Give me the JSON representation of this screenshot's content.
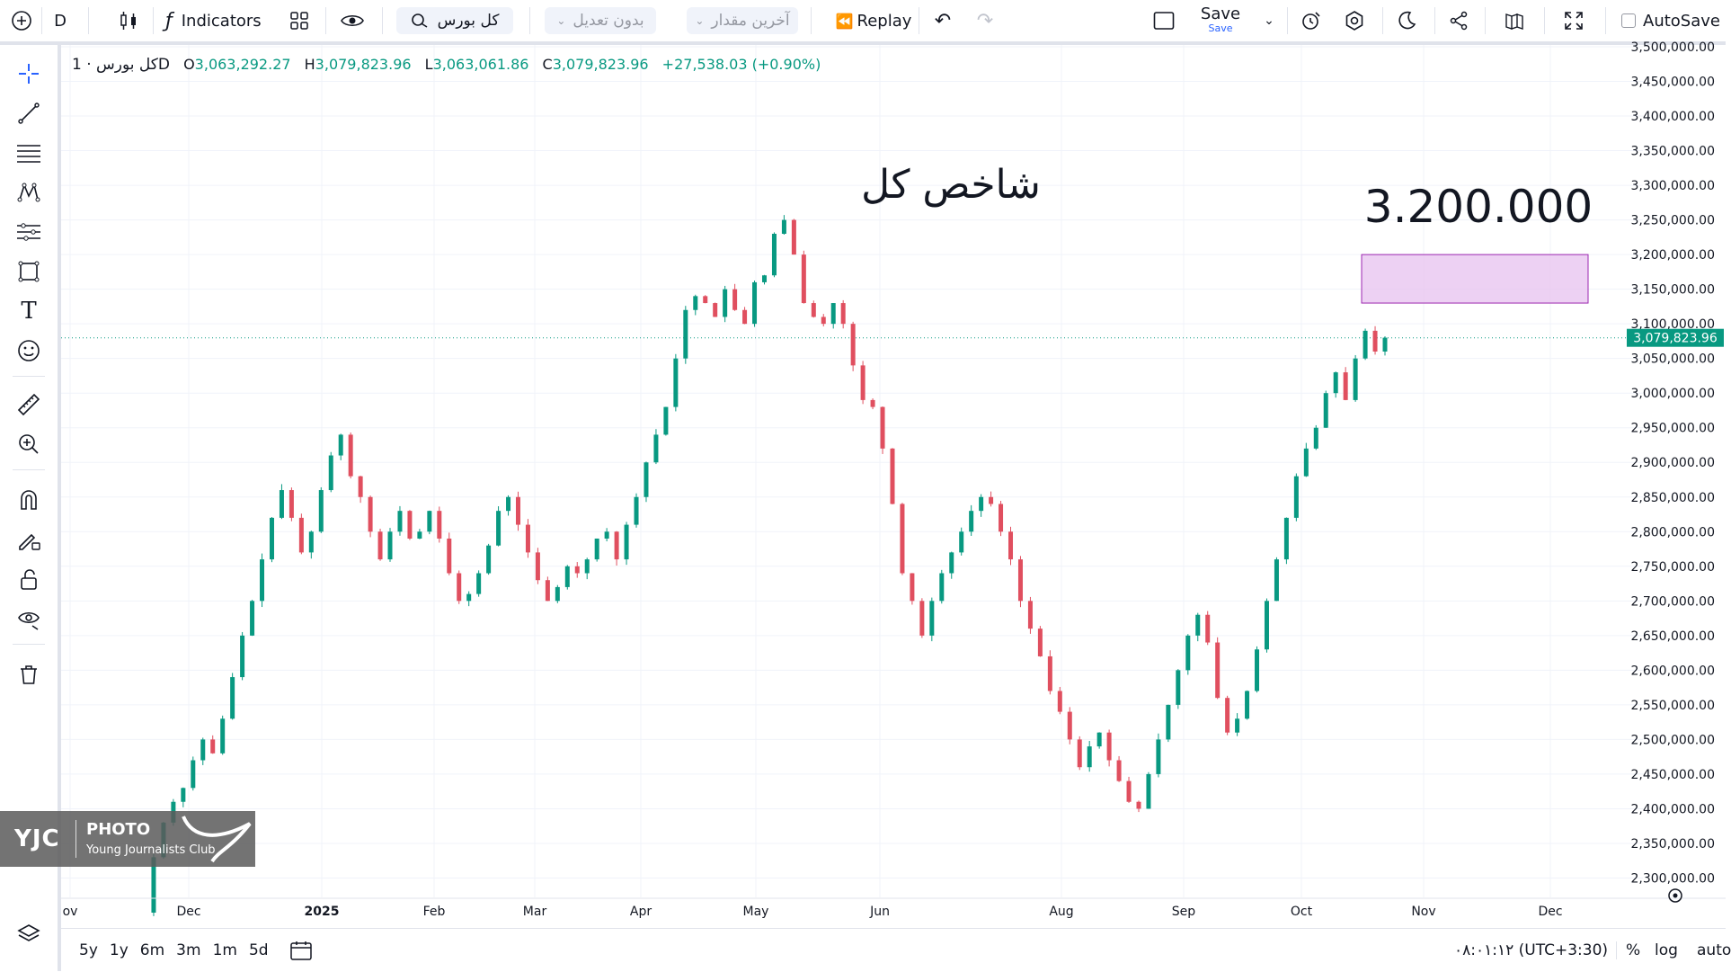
{
  "toolbar": {
    "interval": "D",
    "indicators_label": "Indicators",
    "symbol_search_value": "کل بورس",
    "adjustment_select": "بدون تعدیل",
    "price_type_select": "آخرین مقدار",
    "replay_label": "Replay",
    "save_label": "Save",
    "save_sub": "Save",
    "autosave_label": "AutoSave"
  },
  "legend": {
    "symbol": "کل بورس · 1D",
    "o_label": "O",
    "o_value": "3,063,292.27",
    "h_label": "H",
    "h_value": "3,079,823.96",
    "l_label": "L",
    "l_value": "3,063,061.86",
    "c_label": "C",
    "c_value": "3,079,823.96",
    "change": "+27,538.03 (+0.90%)"
  },
  "annotations": {
    "title": "شاخص کل",
    "target": "3.200.000"
  },
  "watermark": {
    "brand": "YJC",
    "photo": "PHOTO",
    "club": "Young Journalists Club"
  },
  "bottombar": {
    "ranges": [
      "5y",
      "1y",
      "6m",
      "3m",
      "1m",
      "5d"
    ],
    "clock": "۰۸:۰۱:۱۲ (UTC+3:30)",
    "percent": "%",
    "log": "log",
    "auto": "auto"
  },
  "colors": {
    "up": "#089981",
    "down": "#e04f5f",
    "target_zone_fill": "#e8c6f0",
    "target_zone_border": "#9c27b0",
    "grid": "#f0f3fa",
    "price_line": "#089981"
  },
  "chart_data": {
    "type": "candlestick",
    "title": "شاخص کل",
    "ylim": [
      2250000,
      3500000
    ],
    "y_ticks": [
      "3,500,000.00",
      "3,450,000.00",
      "3,400,000.00",
      "3,350,000.00",
      "3,300,000.00",
      "3,250,000.00",
      "3,200,000.00",
      "3,150,000.00",
      "3,100,000.00",
      "3,050,000.00",
      "3,000,000.00",
      "2,950,000.00",
      "2,900,000.00",
      "2,850,000.00",
      "2,800,000.00",
      "2,750,000.00",
      "2,700,000.00",
      "2,650,000.00",
      "2,600,000.00",
      "2,550,000.00",
      "2,500,000.00",
      "2,450,000.00",
      "2,400,000.00",
      "2,350,000.00",
      "2,300,000.00"
    ],
    "x_ticks": [
      "ov",
      "Dec",
      "2025",
      "Feb",
      "Mar",
      "Apr",
      "May",
      "Jun",
      "Aug",
      "Sep",
      "Oct",
      "Nov",
      "Dec"
    ],
    "last_price_label": "3,079,823.96",
    "last_price": 3079823.96,
    "target_zone": [
      3130000,
      3200000
    ],
    "target_label": "3.200.000",
    "series_points": [
      2250000,
      2330000,
      2380000,
      2410000,
      2430000,
      2470000,
      2500000,
      2480000,
      2530000,
      2590000,
      2650000,
      2700000,
      2760000,
      2820000,
      2860000,
      2820000,
      2770000,
      2800000,
      2860000,
      2910000,
      2940000,
      2880000,
      2850000,
      2800000,
      2760000,
      2800000,
      2830000,
      2790000,
      2800000,
      2830000,
      2790000,
      2740000,
      2700000,
      2710000,
      2740000,
      2780000,
      2830000,
      2850000,
      2810000,
      2770000,
      2730000,
      2700000,
      2720000,
      2750000,
      2740000,
      2760000,
      2790000,
      2800000,
      2760000,
      2810000,
      2850000,
      2900000,
      2940000,
      2980000,
      3050000,
      3120000,
      3140000,
      3130000,
      3110000,
      3150000,
      3120000,
      3100000,
      3160000,
      3170000,
      3230000,
      3250000,
      3200000,
      3130000,
      3110000,
      3100000,
      3130000,
      3100000,
      3040000,
      2990000,
      2980000,
      2920000,
      2840000,
      2740000,
      2700000,
      2650000,
      2700000,
      2740000,
      2770000,
      2800000,
      2830000,
      2850000,
      2840000,
      2800000,
      2760000,
      2700000,
      2660000,
      2620000,
      2570000,
      2540000,
      2500000,
      2460000,
      2490000,
      2510000,
      2470000,
      2440000,
      2410000,
      2400000,
      2450000,
      2500000,
      2550000,
      2600000,
      2650000,
      2680000,
      2640000,
      2560000,
      2510000,
      2530000,
      2570000,
      2630000,
      2700000,
      2760000,
      2820000,
      2880000,
      2920000,
      2950000,
      3000000,
      3030000,
      2990000,
      3050000,
      3090000,
      3060000,
      3080000
    ]
  }
}
